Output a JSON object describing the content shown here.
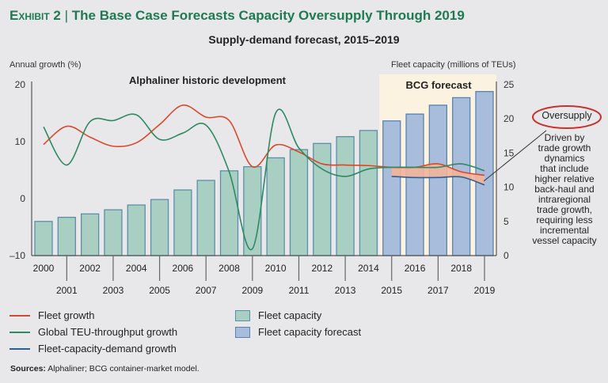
{
  "header": {
    "exhibit": "Exhibit 2",
    "title": "The Base Case Forecasts Capacity Oversupply Through 2019",
    "subtitle": "Supply-demand forecast, 2015–2019"
  },
  "chart_data": {
    "type": "bar+line",
    "title": "Supply-demand forecast, 2015–2019",
    "ylabel_left": "Annual growth (%)",
    "ylabel_right": "Fleet capacity (millions of TEUs)",
    "ylim_left": [
      -10,
      20
    ],
    "ylim_right": [
      0,
      25
    ],
    "yticks_left": [
      "20",
      "10",
      "0",
      "–10"
    ],
    "yticks_right": [
      "25",
      "20",
      "15",
      "10",
      "5",
      "0"
    ],
    "categories": [
      "2000",
      "2001",
      "2002",
      "2003",
      "2004",
      "2005",
      "2006",
      "2007",
      "2008",
      "2009",
      "2010",
      "2011",
      "2012",
      "2013",
      "2014",
      "2015",
      "2016",
      "2017",
      "2018",
      "2019"
    ],
    "region_labels": {
      "historic": "Alphaliner historic development",
      "forecast": "BCG forecast"
    },
    "forecast_start": "2015",
    "bars": [
      {
        "name": "Fleet capacity",
        "axis": "right",
        "color": "#a9cfc2",
        "edge": "#5b8fa8",
        "values": [
          5.0,
          5.6,
          6.1,
          6.7,
          7.4,
          8.2,
          9.6,
          11.0,
          12.4,
          13.0,
          14.3,
          15.5,
          16.4,
          17.4,
          18.3,
          null,
          null,
          null,
          null,
          null
        ]
      },
      {
        "name": "Fleet capacity forecast",
        "axis": "right",
        "color": "#a8bcdc",
        "edge": "#5b82b0",
        "values": [
          null,
          null,
          null,
          null,
          null,
          null,
          null,
          null,
          null,
          null,
          null,
          null,
          null,
          null,
          null,
          19.7,
          20.7,
          22.0,
          23.1,
          24.0
        ]
      }
    ],
    "series": [
      {
        "name": "Fleet growth",
        "axis": "left",
        "color": "#d9482b",
        "values": [
          9.5,
          12.7,
          10.8,
          9.2,
          9.8,
          13.0,
          16.4,
          14.3,
          13.7,
          5.6,
          9.4,
          8.2,
          6.1,
          5.9,
          5.8,
          5.5,
          5.5,
          6.1,
          4.7,
          4.1
        ]
      },
      {
        "name": "Global TEU-throughput growth",
        "axis": "left",
        "color": "#2e8a60",
        "values": [
          12.6,
          5.9,
          13.5,
          13.7,
          14.7,
          10.4,
          11.5,
          12.9,
          4.7,
          -8.8,
          15.0,
          8.9,
          5.2,
          3.9,
          5.2,
          5.5,
          5.5,
          5.5,
          6.1,
          4.9
        ]
      },
      {
        "name": "Fleet-capacity-demand growth",
        "axis": "left",
        "color": "#2f5f8c",
        "values": [
          null,
          null,
          null,
          null,
          null,
          null,
          null,
          null,
          null,
          null,
          null,
          null,
          null,
          null,
          null,
          3.9,
          3.7,
          3.7,
          3.8,
          2.4
        ]
      }
    ],
    "shaded_gap": {
      "between": [
        "Fleet growth",
        "Fleet-capacity-demand growth"
      ],
      "from": "2015",
      "to": "2019",
      "color": "#f2b49a"
    },
    "annotation": {
      "label": "Oversupply",
      "text": [
        "Driven by",
        "trade growth",
        "dynamics",
        "that include",
        "higher relative",
        "back-haul and",
        "intraregional",
        "trade growth,",
        "requiring less",
        "incremental",
        "vessel capacity"
      ]
    },
    "legend_placement": "bottom",
    "grid": false
  },
  "sources": {
    "label": "Sources:",
    "text": "Alphaliner; BCG container-market model."
  },
  "colors": {
    "title": "#1f7a52",
    "forecast_bg": "#fbf3df",
    "oversupply_ring": "#c9302c"
  }
}
